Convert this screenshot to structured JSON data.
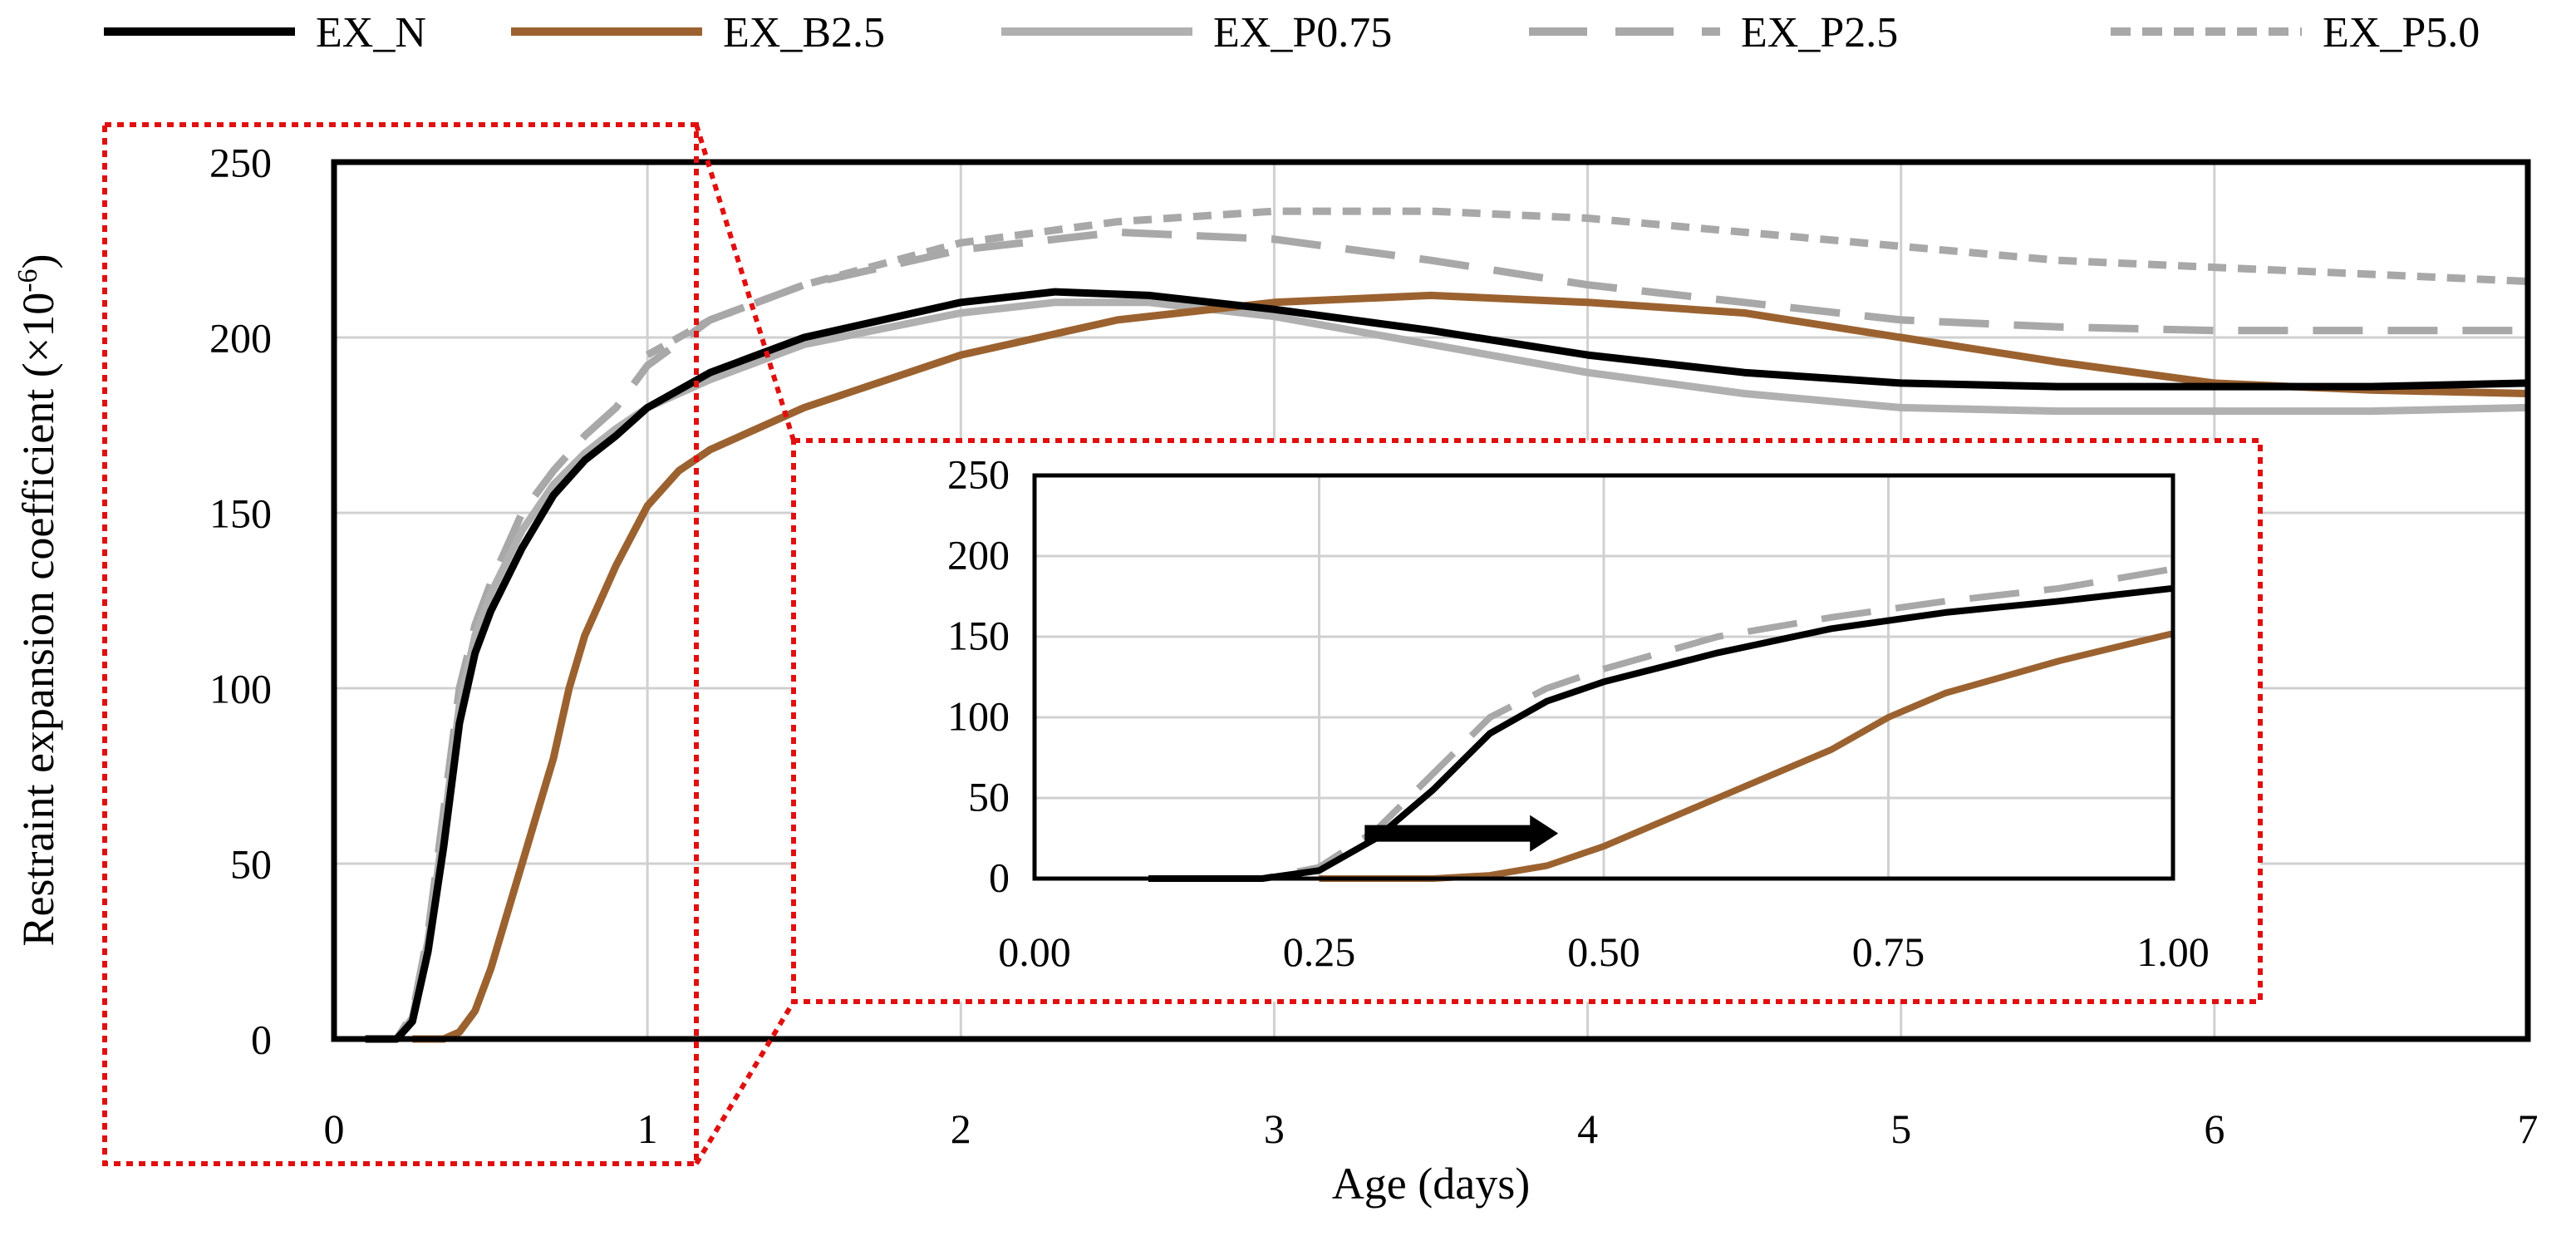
{
  "chart_data": {
    "type": "line",
    "main": {
      "xlabel": "Age (days)",
      "ylabel": "Restraint expansion coefficient (×10",
      "ylabel_exponent": "-6",
      "ylabel_close": ")",
      "xlim": [
        0,
        7
      ],
      "ylim": [
        0,
        250
      ],
      "x_ticks": [
        "0",
        "1",
        "2",
        "3",
        "4",
        "5",
        "6",
        "7"
      ],
      "y_ticks": [
        "0",
        "50",
        "100",
        "150",
        "200",
        "250"
      ],
      "grid": true
    },
    "inset": {
      "xlim": [
        0,
        1
      ],
      "ylim": [
        0,
        250
      ],
      "x_ticks": [
        "0.00",
        "0.25",
        "0.50",
        "0.75",
        "1.00"
      ],
      "y_ticks": [
        "0",
        "50",
        "100",
        "150",
        "200",
        "250"
      ],
      "grid": true,
      "arrow": {
        "x_start": 0.29,
        "x_end": 0.46,
        "y": 28
      },
      "series_shown": [
        "EX_N",
        "EX_B2.5",
        "EX_P2.5"
      ]
    },
    "zoom_region": {
      "x": [
        0,
        1.15
      ],
      "y": [
        0,
        250
      ]
    },
    "series": [
      {
        "name": "EX_N",
        "color": "#000000",
        "dash": "solid",
        "x": [
          0.1,
          0.2,
          0.25,
          0.3,
          0.35,
          0.4,
          0.45,
          0.5,
          0.6,
          0.7,
          0.8,
          0.9,
          1.0,
          1.2,
          1.5,
          2.0,
          2.3,
          2.6,
          3.0,
          3.5,
          4.0,
          4.5,
          5.0,
          5.5,
          6.0,
          6.5,
          7.0
        ],
        "y": [
          0,
          0,
          5,
          25,
          55,
          90,
          110,
          122,
          140,
          155,
          165,
          172,
          180,
          190,
          200,
          210,
          213,
          212,
          208,
          202,
          195,
          190,
          187,
          186,
          186,
          186,
          187
        ]
      },
      {
        "name": "EX_B2.5",
        "color": "#9b6230",
        "dash": "solid",
        "x": [
          0.25,
          0.35,
          0.4,
          0.45,
          0.5,
          0.55,
          0.6,
          0.65,
          0.7,
          0.75,
          0.8,
          0.9,
          1.0,
          1.1,
          1.2,
          1.5,
          2.0,
          2.5,
          3.0,
          3.5,
          4.0,
          4.5,
          5.0,
          5.5,
          6.0,
          6.5,
          7.0
        ],
        "y": [
          0,
          0,
          2,
          8,
          20,
          35,
          50,
          65,
          80,
          100,
          115,
          135,
          152,
          162,
          168,
          180,
          195,
          205,
          210,
          212,
          210,
          207,
          200,
          193,
          187,
          185,
          184
        ]
      },
      {
        "name": "EX_P0.75",
        "color": "#b0b0b0",
        "dash": "solid",
        "x": [
          0.1,
          0.2,
          0.25,
          0.3,
          0.35,
          0.4,
          0.45,
          0.5,
          0.6,
          0.7,
          0.8,
          0.9,
          1.0,
          1.2,
          1.5,
          2.0,
          2.3,
          2.6,
          3.0,
          3.5,
          4.0,
          4.5,
          5.0,
          5.5,
          6.0,
          6.5,
          7.0
        ],
        "y": [
          0,
          0,
          6,
          28,
          60,
          95,
          115,
          127,
          145,
          158,
          167,
          174,
          180,
          188,
          198,
          207,
          210,
          210,
          206,
          198,
          190,
          184,
          180,
          179,
          179,
          179,
          180
        ]
      },
      {
        "name": "EX_P2.5",
        "color": "#a8a8a8",
        "dash": "long-dash",
        "x": [
          0.1,
          0.2,
          0.25,
          0.3,
          0.35,
          0.4,
          0.45,
          0.5,
          0.6,
          0.7,
          0.8,
          0.9,
          1.0,
          1.2,
          1.5,
          2.0,
          2.5,
          3.0,
          3.5,
          4.0,
          4.5,
          5.0,
          5.5,
          6.0,
          6.5,
          7.0
        ],
        "y": [
          0,
          0,
          7,
          30,
          65,
          100,
          118,
          130,
          150,
          162,
          172,
          180,
          192,
          205,
          215,
          225,
          230,
          228,
          222,
          215,
          210,
          205,
          203,
          202,
          202,
          202
        ]
      },
      {
        "name": "EX_P5.0",
        "color": "#a8a8a8",
        "dash": "short-dash",
        "x": [
          1.0,
          1.2,
          1.5,
          2.0,
          2.5,
          3.0,
          3.5,
          4.0,
          4.5,
          5.0,
          5.5,
          6.0,
          6.5,
          7.0
        ],
        "y": [
          195,
          205,
          215,
          227,
          233,
          236,
          236,
          234,
          230,
          226,
          222,
          220,
          218,
          216
        ]
      }
    ]
  }
}
